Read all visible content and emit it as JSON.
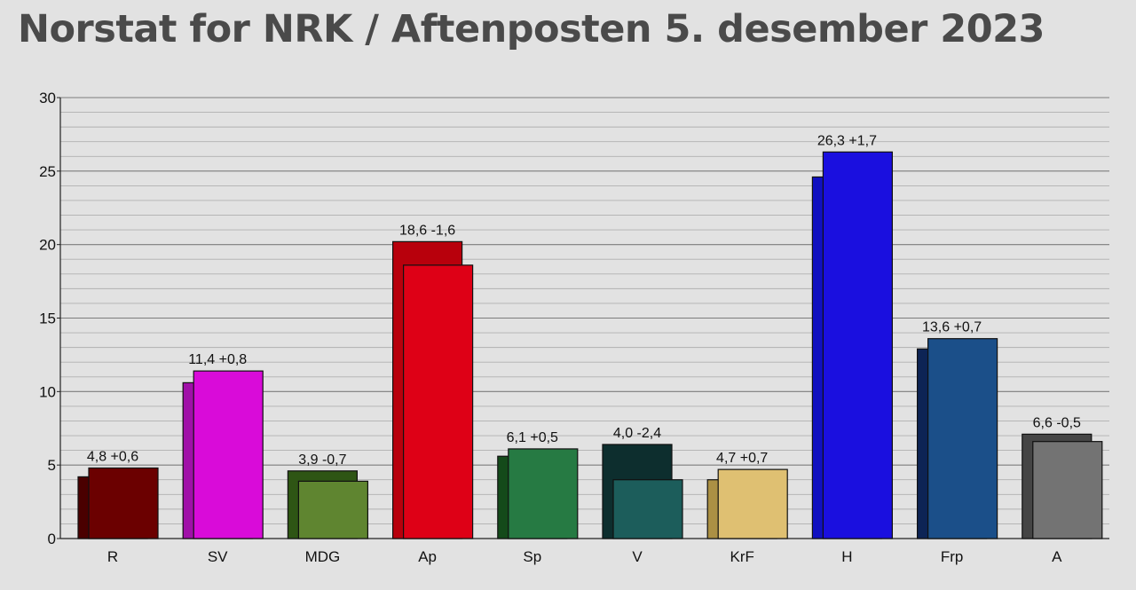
{
  "chart_data": {
    "type": "bar",
    "title": "Norstat for NRK / Aftenposten 5. desember 2023",
    "xlabel": "",
    "ylabel": "",
    "ylim": [
      0,
      30
    ],
    "yticks": [
      "0",
      "5",
      "10",
      "15",
      "20",
      "25",
      "30"
    ],
    "grid": true,
    "categories": [
      "R",
      "SV",
      "MDG",
      "Ap",
      "Sp",
      "V",
      "KrF",
      "H",
      "Frp",
      "A"
    ],
    "series": [
      {
        "values": [
          4.2,
          10.6,
          4.6,
          20.2,
          5.6,
          6.4,
          4.0,
          24.6,
          12.9,
          7.1
        ],
        "colors": [
          "#4a0000",
          "#a010a8",
          "#2e5514",
          "#b8000c",
          "#144a1a",
          "#0d2e2e",
          "#ab9044",
          "#1010c0",
          "#0d2455",
          "#454545"
        ]
      },
      {
        "values": [
          4.8,
          11.4,
          3.9,
          18.6,
          6.1,
          4.0,
          4.7,
          26.3,
          13.6,
          6.6
        ],
        "colors": [
          "#6b0000",
          "#d90bd9",
          "#5f8530",
          "#de0016",
          "#267a43",
          "#1c5d5b",
          "#dfc072",
          "#1a0fdf",
          "#1b4f89",
          "#737373"
        ]
      }
    ],
    "data_labels": [
      "4,8 +0,6",
      "11,4 +0,8",
      "3,9 -0,7",
      "18,6 -1,6",
      "6,1 +0,5",
      "4,0 -2,4",
      "4,7 +0,7",
      "26,3 +1,7",
      "13,6 +0,7",
      "6,6 -0,5"
    ]
  }
}
